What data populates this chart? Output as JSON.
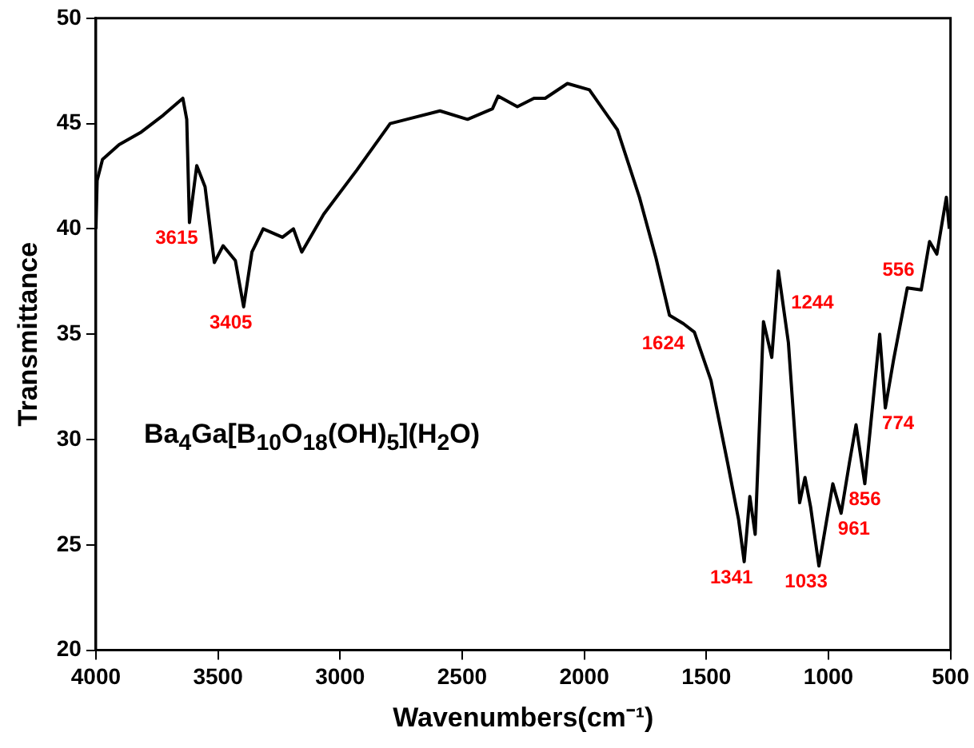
{
  "chart_data": {
    "type": "line",
    "xlabel": "Wavenumbers(cm⁻¹)",
    "ylabel": "Transmittance",
    "xlim": [
      4000,
      500
    ],
    "xticks": [
      4000,
      3500,
      3000,
      2500,
      2000,
      1500,
      1000,
      500
    ],
    "ylim": [
      20,
      50
    ],
    "yticks": [
      20,
      25,
      30,
      35,
      40,
      45,
      50
    ],
    "grid": false,
    "legend": false,
    "marker": "none",
    "line_style": "solid",
    "x": [
      4000,
      3995,
      3973,
      3905,
      3814,
      3724,
      3644,
      3628,
      3617,
      3587,
      3553,
      3515,
      3479,
      3429,
      3395,
      3361,
      3315,
      3236,
      3191,
      3157,
      3067,
      2931,
      2795,
      2591,
      2478,
      2376,
      2353,
      2274,
      2206,
      2160,
      2069,
      1979,
      1864,
      1774,
      1706,
      1651,
      1594,
      1549,
      1481,
      1413,
      1368,
      1345,
      1322,
      1300,
      1266,
      1232,
      1205,
      1164,
      1118,
      1096,
      1073,
      1039,
      982,
      948,
      914,
      887,
      851,
      790,
      767,
      733,
      677,
      620,
      586,
      556,
      517,
      505
    ],
    "series": [
      {
        "color": "#000000",
        "values": [
          40.0,
          42.3,
          43.3,
          44.0,
          44.6,
          45.4,
          46.2,
          45.2,
          40.3,
          43.0,
          42.0,
          38.4,
          39.2,
          38.5,
          36.3,
          38.9,
          40.0,
          39.6,
          40.0,
          38.9,
          40.7,
          42.8,
          45.0,
          45.6,
          45.2,
          45.7,
          46.3,
          45.8,
          46.2,
          46.2,
          46.9,
          46.6,
          44.7,
          41.5,
          38.6,
          35.9,
          35.5,
          35.1,
          32.8,
          28.9,
          26.2,
          24.2,
          27.3,
          25.5,
          35.6,
          33.9,
          38.0,
          34.6,
          27.0,
          28.2,
          26.8,
          24.0,
          27.9,
          26.5,
          28.9,
          30.7,
          27.9,
          35.0,
          31.5,
          33.8,
          37.2,
          37.1,
          39.4,
          38.8,
          41.5,
          40.0
        ]
      }
    ],
    "annotations": [
      "Ba$_{4}$Ga[B$_{10}$O$_{18}$(OH)$_{5}$](H$_{2}$O)",
      {
        "text": "3615",
        "x": 3617,
        "y": 40.3
      },
      {
        "text": "3405",
        "x": 3395,
        "y": 36.3
      },
      {
        "text": "1624",
        "x": 1624,
        "y": 35.3
      },
      {
        "text": "1341",
        "x": 1345,
        "y": 24.2
      },
      {
        "text": "1244",
        "x": 1232,
        "y": 33.9
      },
      {
        "text": "1033",
        "x": 1039,
        "y": 24.0
      },
      {
        "text": "961",
        "x": 948,
        "y": 26.5
      },
      {
        "text": "856",
        "x": 851,
        "y": 27.9
      },
      {
        "text": "774",
        "x": 767,
        "y": 31.5
      },
      {
        "text": "556",
        "x": 556,
        "y": 38.8
      }
    ]
  }
}
